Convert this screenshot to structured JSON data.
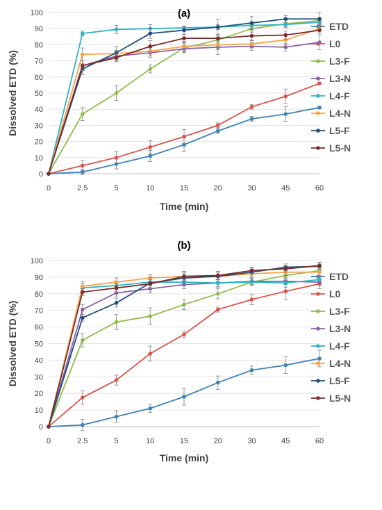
{
  "chart_data": [
    {
      "type": "line",
      "title": "(a)",
      "xlabel": "Time (min)",
      "ylabel": "Dissolved ETD (%)",
      "x": [
        "0",
        "2.5",
        "5",
        "10",
        "15",
        "20",
        "30",
        "45",
        "60"
      ],
      "ylim": [
        0,
        100
      ],
      "yticks": [
        "0",
        "10",
        "20",
        "30",
        "40",
        "50",
        "60",
        "70",
        "80",
        "90",
        "100"
      ],
      "grid": true,
      "legend": "right",
      "series": [
        {
          "name": "ETD",
          "color": "#3f83b5",
          "values": [
            0,
            1,
            6,
            11,
            18,
            26.5,
            34,
            37,
            41
          ],
          "errors": [
            0,
            1.5,
            3,
            3.5,
            4.5,
            1.5,
            1.5,
            4.5,
            0.8
          ]
        },
        {
          "name": "L0",
          "color": "#d9544d",
          "values": [
            0,
            5,
            10,
            16.5,
            23,
            30,
            41.5,
            48,
            56
          ],
          "errors": [
            0,
            3,
            4,
            4,
            4.5,
            1.5,
            1.5,
            4.5,
            0.8
          ]
        },
        {
          "name": "L3-F",
          "color": "#8fbc4d",
          "values": [
            0,
            37,
            50,
            65,
            78,
            83,
            90,
            93,
            95
          ],
          "errors": [
            0,
            4,
            4.5,
            2.5,
            3,
            2.5,
            2.5,
            2.5,
            1.5
          ]
        },
        {
          "name": "L3-N",
          "color": "#8b61a6",
          "values": [
            0,
            67,
            73,
            75,
            77.5,
            78.5,
            79,
            78.5,
            81.5
          ],
          "errors": [
            0,
            3,
            2.5,
            3,
            2,
            4.5,
            2.5,
            2.5,
            4.5
          ]
        },
        {
          "name": "L4-F",
          "color": "#2db3c7",
          "values": [
            0,
            87,
            89.5,
            90,
            90.5,
            91,
            92,
            92.5,
            94
          ],
          "errors": [
            0,
            1.5,
            2.5,
            2.5,
            1,
            1.5,
            2,
            1.5,
            1.5
          ]
        },
        {
          "name": "L4-N",
          "color": "#f7a24b",
          "values": [
            0,
            74,
            74.5,
            76,
            79,
            80,
            80.5,
            83,
            90
          ],
          "errors": [
            0,
            4,
            2,
            3,
            3,
            3,
            2.5,
            3,
            3
          ]
        },
        {
          "name": "L5-F",
          "color": "#1f4e79",
          "values": [
            0,
            65,
            75,
            87,
            89,
            91,
            93.5,
            96,
            96
          ],
          "errors": [
            0,
            3.5,
            4,
            3,
            2.5,
            4.5,
            4,
            2,
            4
          ]
        },
        {
          "name": "L5-N",
          "color": "#7b2c2c",
          "values": [
            0,
            67,
            72,
            79,
            84,
            84,
            85.5,
            86,
            89
          ],
          "errors": [
            0,
            3,
            2.5,
            3.5,
            2.5,
            2.5,
            3,
            2.5,
            2
          ]
        }
      ]
    },
    {
      "type": "line",
      "title": "(b)",
      "xlabel": "Time (min)",
      "ylabel": "Dissolved ETD (%)",
      "x": [
        "0",
        "2.5",
        "5",
        "10",
        "15",
        "20",
        "30",
        "45",
        "60"
      ],
      "ylim": [
        0,
        100
      ],
      "yticks": [
        "0",
        "10",
        "20",
        "30",
        "40",
        "50",
        "60",
        "70",
        "80",
        "90",
        "100"
      ],
      "grid": true,
      "legend": "right",
      "series": [
        {
          "name": "ETD",
          "color": "#3f83b5",
          "values": [
            0,
            1,
            6,
            11,
            18,
            26.5,
            34,
            37,
            41
          ],
          "errors": [
            0,
            3.5,
            3.5,
            2.5,
            5,
            4,
            2.5,
            5,
            5
          ]
        },
        {
          "name": "L0",
          "color": "#d9544d",
          "values": [
            0,
            17.5,
            28,
            44,
            55.5,
            70.5,
            76.5,
            81.5,
            86
          ],
          "errors": [
            0,
            4,
            3,
            4.5,
            2,
            1.5,
            3,
            5,
            3
          ]
        },
        {
          "name": "L3-F",
          "color": "#8fbc4d",
          "values": [
            0,
            52,
            63,
            66.5,
            73.5,
            80,
            87,
            91,
            94
          ],
          "errors": [
            0,
            4,
            4.5,
            5,
            3,
            3,
            2,
            3,
            3
          ]
        },
        {
          "name": "L3-N",
          "color": "#8b61a6",
          "values": [
            0,
            70.5,
            80.5,
            83,
            85.5,
            86.5,
            87.5,
            87.5,
            87
          ],
          "errors": [
            0,
            3,
            2.5,
            2.5,
            2.5,
            2,
            2,
            2,
            2
          ]
        },
        {
          "name": "L4-F",
          "color": "#2db3c7",
          "values": [
            0,
            83.5,
            85,
            87,
            87,
            86.5,
            87,
            86.5,
            88.5
          ],
          "errors": [
            0,
            2.5,
            2.5,
            2,
            2,
            2.5,
            2,
            2.5,
            2
          ]
        },
        {
          "name": "L4-N",
          "color": "#f7a24b",
          "values": [
            0,
            84.5,
            87,
            89.5,
            90.5,
            90.5,
            92,
            93,
            93
          ],
          "errors": [
            0,
            3,
            2.5,
            2,
            3,
            2,
            2.5,
            2,
            3
          ]
        },
        {
          "name": "L5-F",
          "color": "#1f4e79",
          "values": [
            0,
            65.5,
            74.5,
            86.5,
            89.5,
            90.5,
            93,
            96,
            96.5
          ],
          "errors": [
            0,
            2,
            2.5,
            3.5,
            3,
            3,
            2.5,
            2,
            2
          ]
        },
        {
          "name": "L5-N",
          "color": "#7b2c2c",
          "values": [
            0,
            81,
            83.5,
            86,
            90.5,
            91,
            94,
            95,
            97
          ],
          "errors": [
            0,
            2,
            2.5,
            2.5,
            3,
            2.5,
            2,
            2,
            2
          ]
        }
      ]
    }
  ]
}
